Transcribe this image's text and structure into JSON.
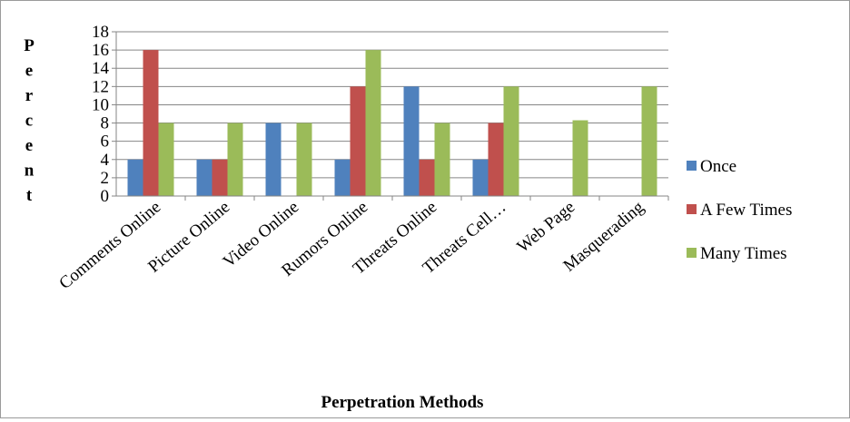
{
  "chart_data": {
    "type": "bar",
    "title": "",
    "xlabel": "Perpetration Methods",
    "ylabel": "Percent",
    "ylim": [
      0,
      18
    ],
    "yticks": [
      0,
      2,
      4,
      6,
      8,
      10,
      12,
      14,
      16,
      18
    ],
    "grid": true,
    "legend_position": "right",
    "categories": [
      "Comments Online",
      "Picture Online",
      "Video Online",
      "Rumors Online",
      "Threats Online",
      "Threats Cell…",
      "Web Page",
      "Masquerading"
    ],
    "series": [
      {
        "name": "Once",
        "color": "#4F81BD",
        "values": [
          4,
          4,
          8,
          4,
          12,
          4,
          0,
          0
        ]
      },
      {
        "name": "A Few Times",
        "color": "#C0504D",
        "values": [
          16,
          4,
          0,
          12,
          4,
          8,
          0,
          0
        ]
      },
      {
        "name": "Many Times",
        "color": "#9BBB59",
        "values": [
          8,
          8,
          8,
          16,
          8,
          12,
          8.3,
          12
        ]
      }
    ]
  }
}
